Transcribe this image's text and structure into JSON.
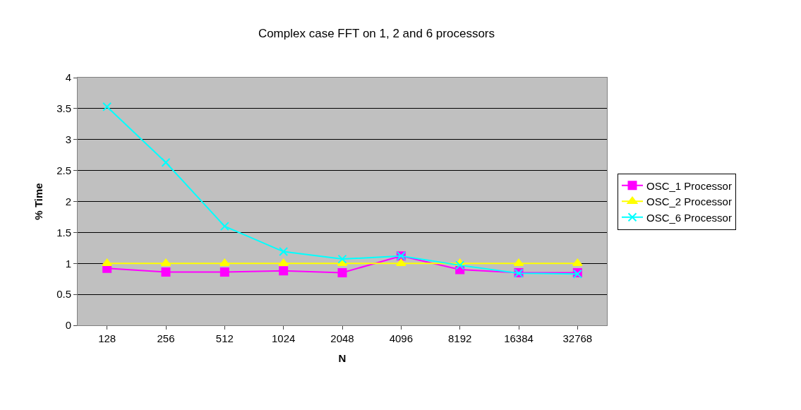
{
  "chart_data": {
    "type": "line",
    "title": "Complex case FFT on 1, 2 and 6 processors",
    "xlabel": "N",
    "ylabel": "% Time",
    "categories": [
      "128",
      "256",
      "512",
      "1024",
      "2048",
      "4096",
      "8192",
      "16384",
      "32768"
    ],
    "series": [
      {
        "name": "OSC_1 Processor",
        "color": "#ff00ff",
        "marker": "square",
        "values": [
          0.92,
          0.86,
          0.86,
          0.88,
          0.85,
          1.12,
          0.9,
          0.85,
          0.85
        ]
      },
      {
        "name": "OSC_2 Processor",
        "color": "#ffff00",
        "marker": "triangle",
        "values": [
          1,
          1,
          1,
          1,
          1,
          1,
          1,
          1,
          1
        ]
      },
      {
        "name": "OSC_6 Processor",
        "color": "#00ffff",
        "marker": "cross",
        "values": [
          3.53,
          2.63,
          1.6,
          1.19,
          1.07,
          1.12,
          0.97,
          0.84,
          0.83
        ]
      }
    ],
    "ylim": [
      0,
      4
    ],
    "yticks": [
      0,
      0.5,
      1,
      1.5,
      2,
      2.5,
      3,
      3.5,
      4
    ],
    "grid": "y",
    "legend": "right",
    "line_style": "solid"
  }
}
